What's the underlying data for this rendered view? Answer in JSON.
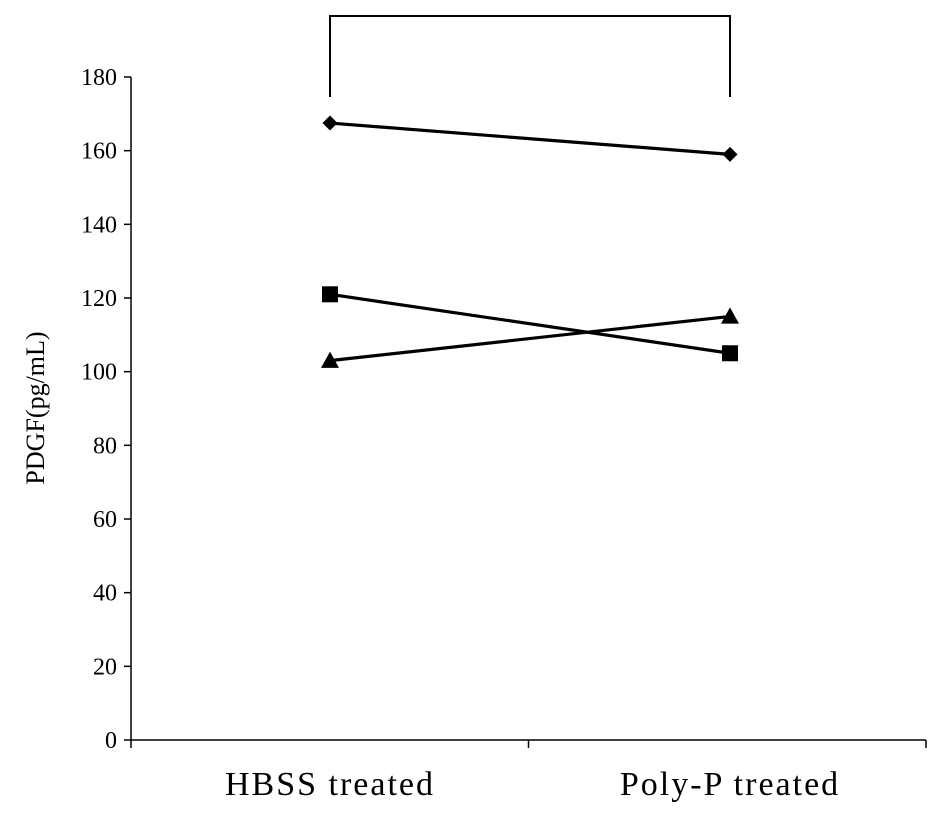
{
  "chart_data": {
    "type": "line",
    "categories": [
      "HBSS treated",
      "Poly-P treated"
    ],
    "series": [
      {
        "marker": "diamond",
        "values": [
          167.5,
          159
        ]
      },
      {
        "marker": "square",
        "values": [
          121,
          105
        ]
      },
      {
        "marker": "triangle",
        "values": [
          103,
          115
        ]
      }
    ],
    "title": "",
    "xlabel": "",
    "ylabel": "PDGF(pg/mL)",
    "ylim": [
      0,
      180
    ],
    "yticks": [
      "0",
      "20",
      "40",
      "60",
      "80",
      "100",
      "120",
      "140",
      "160",
      "180"
    ],
    "grid": false,
    "legend": "none",
    "comparison_bracket": true,
    "line_color": "#000000"
  }
}
